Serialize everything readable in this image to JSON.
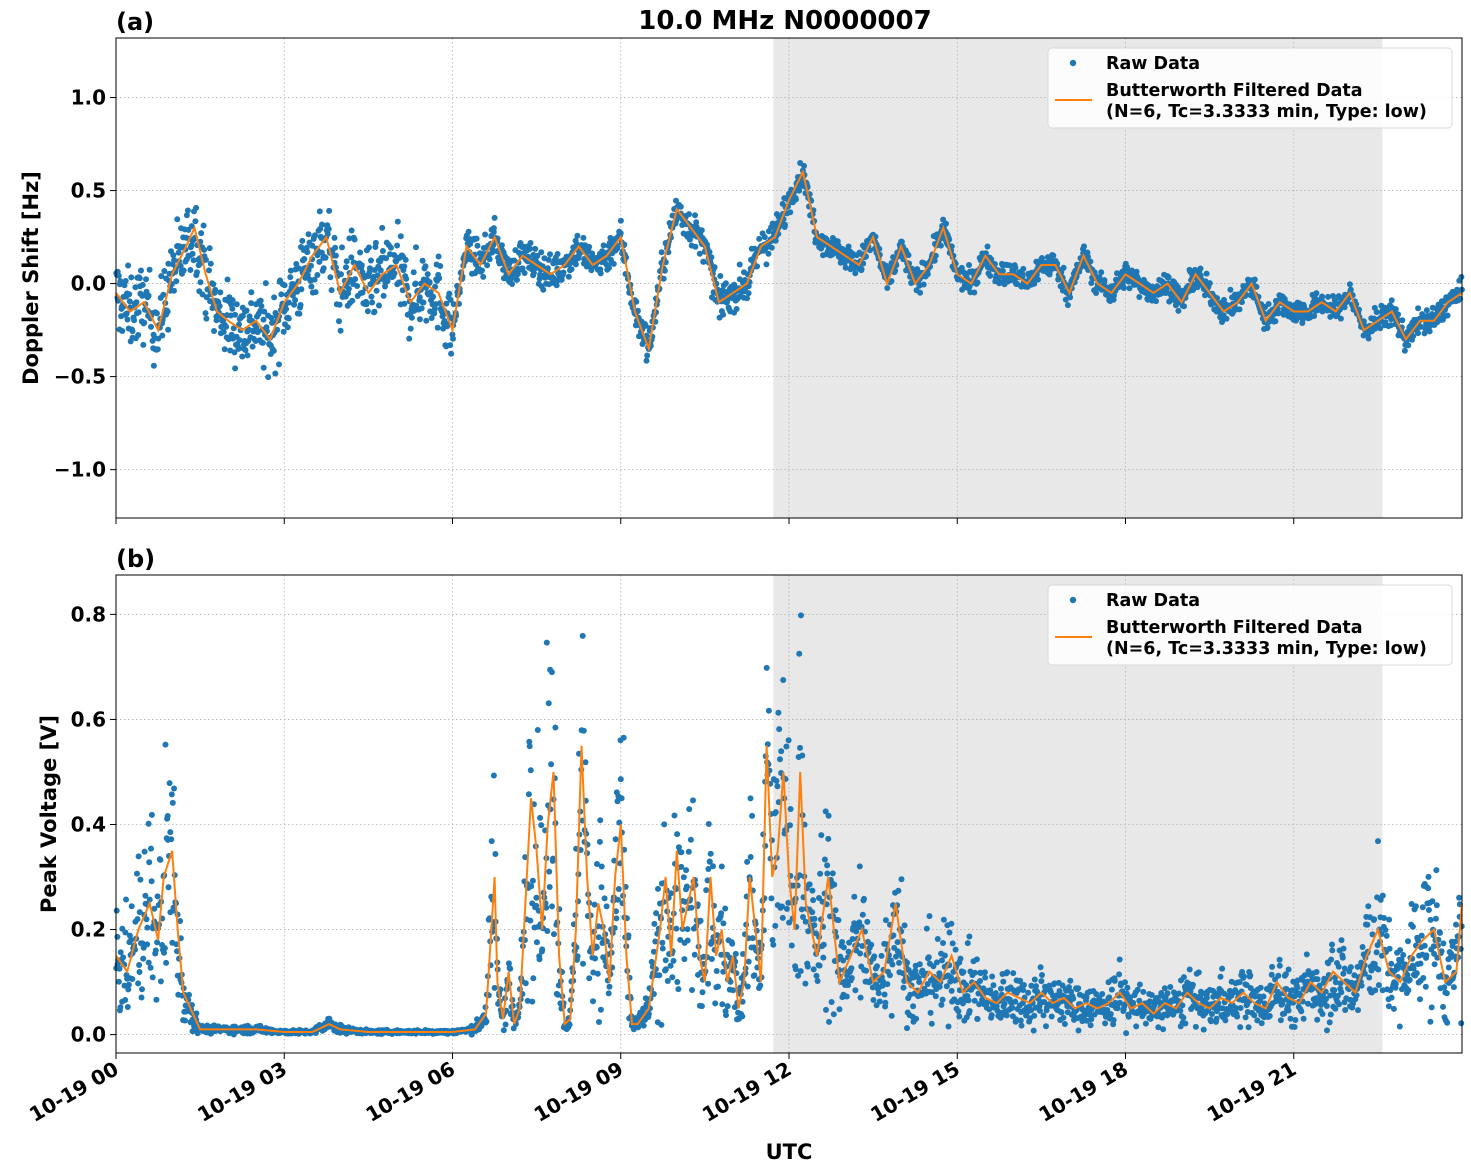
{
  "figure": {
    "title": "10.0 MHz N0000007",
    "xlabel": "UTC"
  },
  "colors": {
    "raw": "#1f77b4",
    "filtered": "#ff7f0e",
    "shade": "#e8e8e8",
    "grid": "#b0b0b0"
  },
  "x_ticks": [
    "10-19 00",
    "10-19 03",
    "10-19 06",
    "10-19 09",
    "10-19 12",
    "10-19 15",
    "10-19 18",
    "10-19 21"
  ],
  "x_tick_hours": [
    0,
    3,
    6,
    9,
    12,
    15,
    18,
    21
  ],
  "chart_data": [
    {
      "type": "scatter",
      "panel_label": "(a)",
      "ylabel": "Doppler Shift [Hz]",
      "xlim_hours": [
        0,
        24
      ],
      "ylim": [
        -1.26,
        1.32
      ],
      "yticks": [
        -1.0,
        -0.5,
        0.0,
        0.5,
        1.0
      ],
      "ytick_labels": [
        "−1.0",
        "−0.5",
        "0.0",
        "0.5",
        "1.0"
      ],
      "shaded_region_hours": [
        11.72,
        22.58
      ],
      "grid": true,
      "legend_position": "top-right",
      "legend": {
        "raw": "Raw Data",
        "filtered_line1": "Butterworth Filtered Data",
        "filtered_line2": "(N=6, Tc=3.3333 min, Type: low)"
      },
      "series": [
        {
          "name": "Butterworth Filtered Data",
          "x_hours": [
            0,
            0.25,
            0.5,
            0.75,
            1,
            1.25,
            1.4,
            1.6,
            1.8,
            2,
            2.25,
            2.5,
            2.75,
            3,
            3.25,
            3.5,
            3.75,
            4,
            4.25,
            4.5,
            4.75,
            5,
            5.25,
            5.5,
            5.75,
            6,
            6.25,
            6.5,
            6.75,
            7,
            7.25,
            7.5,
            7.75,
            8,
            8.25,
            8.5,
            8.75,
            9,
            9.25,
            9.5,
            9.75,
            10,
            10.25,
            10.5,
            10.75,
            11,
            11.25,
            11.5,
            11.75,
            12,
            12.25,
            12.5,
            12.75,
            13,
            13.25,
            13.5,
            13.75,
            14,
            14.25,
            14.5,
            14.75,
            15,
            15.25,
            15.5,
            15.75,
            16,
            16.25,
            16.5,
            16.75,
            17,
            17.25,
            17.5,
            17.75,
            18,
            18.25,
            18.5,
            18.75,
            19,
            19.25,
            19.5,
            19.75,
            20,
            20.25,
            20.5,
            20.75,
            21,
            21.25,
            21.5,
            21.75,
            22,
            22.25,
            22.5,
            22.75,
            23,
            23.25,
            23.5,
            23.75,
            24
          ],
          "y": [
            -0.05,
            -0.15,
            -0.1,
            -0.25,
            0.05,
            0.2,
            0.3,
            0.05,
            -0.15,
            -0.2,
            -0.25,
            -0.2,
            -0.3,
            -0.1,
            0.0,
            0.15,
            0.25,
            -0.05,
            0.1,
            -0.05,
            0.05,
            0.1,
            -0.1,
            0.0,
            -0.05,
            -0.25,
            0.2,
            0.1,
            0.25,
            0.05,
            0.15,
            0.1,
            0.05,
            0.1,
            0.2,
            0.1,
            0.15,
            0.25,
            -0.15,
            -0.35,
            0.1,
            0.4,
            0.3,
            0.2,
            -0.1,
            -0.05,
            0.0,
            0.2,
            0.25,
            0.45,
            0.6,
            0.25,
            0.2,
            0.15,
            0.1,
            0.25,
            0.0,
            0.2,
            0.0,
            0.1,
            0.3,
            0.05,
            0.0,
            0.15,
            0.05,
            0.05,
            0.0,
            0.1,
            0.1,
            -0.05,
            0.15,
            0.0,
            -0.05,
            0.05,
            0.0,
            -0.05,
            0.0,
            -0.1,
            0.05,
            -0.05,
            -0.15,
            -0.1,
            0.0,
            -0.2,
            -0.1,
            -0.15,
            -0.15,
            -0.1,
            -0.15,
            -0.05,
            -0.25,
            -0.2,
            -0.15,
            -0.3,
            -0.2,
            -0.2,
            -0.1,
            -0.05
          ]
        }
      ]
    },
    {
      "type": "scatter",
      "panel_label": "(b)",
      "ylabel": "Peak Voltage [V]",
      "xlim_hours": [
        0,
        24
      ],
      "ylim": [
        -0.035,
        0.875
      ],
      "yticks": [
        0.0,
        0.2,
        0.4,
        0.6,
        0.8
      ],
      "ytick_labels": [
        "0.0",
        "0.2",
        "0.4",
        "0.6",
        "0.8"
      ],
      "shaded_region_hours": [
        11.72,
        22.58
      ],
      "grid": true,
      "legend_position": "top-right",
      "legend": {
        "raw": "Raw Data",
        "filtered_line1": "Butterworth Filtered Data",
        "filtered_line2": "(N=6, Tc=3.3333 min, Type: low)"
      },
      "series": [
        {
          "name": "Butterworth Filtered Data",
          "x_hours": [
            0,
            0.2,
            0.4,
            0.6,
            0.75,
            0.85,
            1,
            1.1,
            1.2,
            1.5,
            2,
            2.5,
            3,
            3.5,
            3.8,
            4,
            4.5,
            5,
            5.5,
            6,
            6.4,
            6.6,
            6.75,
            6.8,
            6.9,
            7,
            7.1,
            7.2,
            7.3,
            7.4,
            7.5,
            7.6,
            7.7,
            7.8,
            7.9,
            8,
            8.1,
            8.2,
            8.3,
            8.4,
            8.5,
            8.6,
            8.7,
            8.8,
            8.9,
            9,
            9.1,
            9.2,
            9.3,
            9.5,
            9.7,
            9.8,
            9.9,
            10,
            10.1,
            10.2,
            10.3,
            10.4,
            10.5,
            10.6,
            10.7,
            10.8,
            10.9,
            11,
            11.1,
            11.2,
            11.3,
            11.4,
            11.5,
            11.6,
            11.7,
            11.8,
            11.9,
            12,
            12.1,
            12.2,
            12.3,
            12.5,
            12.7,
            12.9,
            13.1,
            13.3,
            13.5,
            13.7,
            13.9,
            14.1,
            14.3,
            14.5,
            14.7,
            14.9,
            15.1,
            15.3,
            15.5,
            15.7,
            15.9,
            16.1,
            16.3,
            16.5,
            16.7,
            16.9,
            17.1,
            17.3,
            17.5,
            17.7,
            17.9,
            18.1,
            18.3,
            18.5,
            18.7,
            18.9,
            19.1,
            19.3,
            19.5,
            19.7,
            19.9,
            20.1,
            20.3,
            20.5,
            20.7,
            20.9,
            21.1,
            21.3,
            21.5,
            21.7,
            21.9,
            22.1,
            22.3,
            22.5,
            22.7,
            22.9,
            23.1,
            23.3,
            23.5,
            23.7,
            23.9,
            24
          ],
          "y": [
            0.15,
            0.12,
            0.2,
            0.25,
            0.18,
            0.3,
            0.35,
            0.2,
            0.08,
            0.01,
            0.01,
            0.01,
            0.005,
            0.005,
            0.02,
            0.01,
            0.005,
            0.005,
            0.005,
            0.005,
            0.01,
            0.04,
            0.3,
            0.1,
            0.03,
            0.12,
            0.02,
            0.05,
            0.25,
            0.45,
            0.35,
            0.2,
            0.4,
            0.5,
            0.15,
            0.02,
            0.03,
            0.2,
            0.55,
            0.3,
            0.15,
            0.25,
            0.2,
            0.1,
            0.3,
            0.4,
            0.15,
            0.02,
            0.02,
            0.05,
            0.2,
            0.3,
            0.15,
            0.35,
            0.2,
            0.25,
            0.3,
            0.15,
            0.1,
            0.3,
            0.15,
            0.2,
            0.1,
            0.15,
            0.05,
            0.1,
            0.3,
            0.2,
            0.1,
            0.55,
            0.3,
            0.35,
            0.5,
            0.3,
            0.2,
            0.5,
            0.25,
            0.15,
            0.3,
            0.1,
            0.15,
            0.2,
            0.1,
            0.12,
            0.25,
            0.1,
            0.08,
            0.12,
            0.1,
            0.15,
            0.08,
            0.1,
            0.07,
            0.06,
            0.08,
            0.07,
            0.06,
            0.08,
            0.06,
            0.07,
            0.05,
            0.06,
            0.05,
            0.06,
            0.08,
            0.05,
            0.06,
            0.04,
            0.06,
            0.05,
            0.08,
            0.06,
            0.05,
            0.07,
            0.06,
            0.08,
            0.06,
            0.05,
            0.1,
            0.07,
            0.06,
            0.1,
            0.08,
            0.12,
            0.1,
            0.08,
            0.15,
            0.2,
            0.12,
            0.1,
            0.15,
            0.18,
            0.2,
            0.1,
            0.12,
            0.25
          ]
        }
      ]
    }
  ]
}
